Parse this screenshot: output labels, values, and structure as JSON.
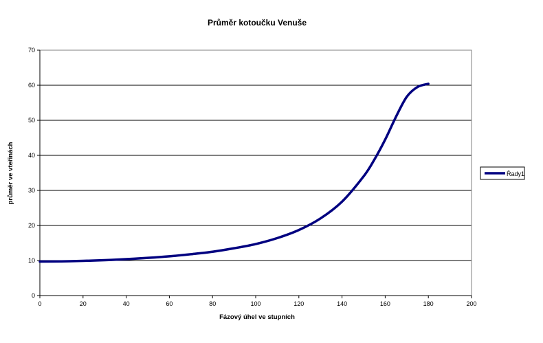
{
  "chart_data": {
    "type": "line",
    "title": "Průměr kotoučku Venuše",
    "xlabel": "Fázový úhel ve stupních",
    "ylabel": "průměr ve vteřinách",
    "xlim": [
      0,
      200
    ],
    "ylim": [
      0,
      70
    ],
    "x_ticks": [
      "0",
      "20",
      "40",
      "60",
      "80",
      "100",
      "120",
      "140",
      "160",
      "180",
      "200"
    ],
    "y_ticks": [
      "0",
      "10",
      "20",
      "30",
      "40",
      "50",
      "60",
      "70"
    ],
    "grid": "horizontal",
    "legend_position": "right",
    "series": [
      {
        "name": "Řady1",
        "color": "#000080",
        "x": [
          0,
          10,
          20,
          30,
          40,
          50,
          60,
          70,
          80,
          90,
          100,
          110,
          120,
          130,
          140,
          150,
          155,
          160,
          165,
          170,
          175,
          180
        ],
        "y": [
          9.7,
          9.75,
          9.9,
          10.1,
          10.4,
          10.75,
          11.2,
          11.8,
          12.5,
          13.5,
          14.7,
          16.4,
          18.7,
          22.0,
          26.8,
          34.0,
          38.8,
          44.5,
          51.0,
          56.7,
          59.5,
          60.4
        ]
      }
    ]
  }
}
